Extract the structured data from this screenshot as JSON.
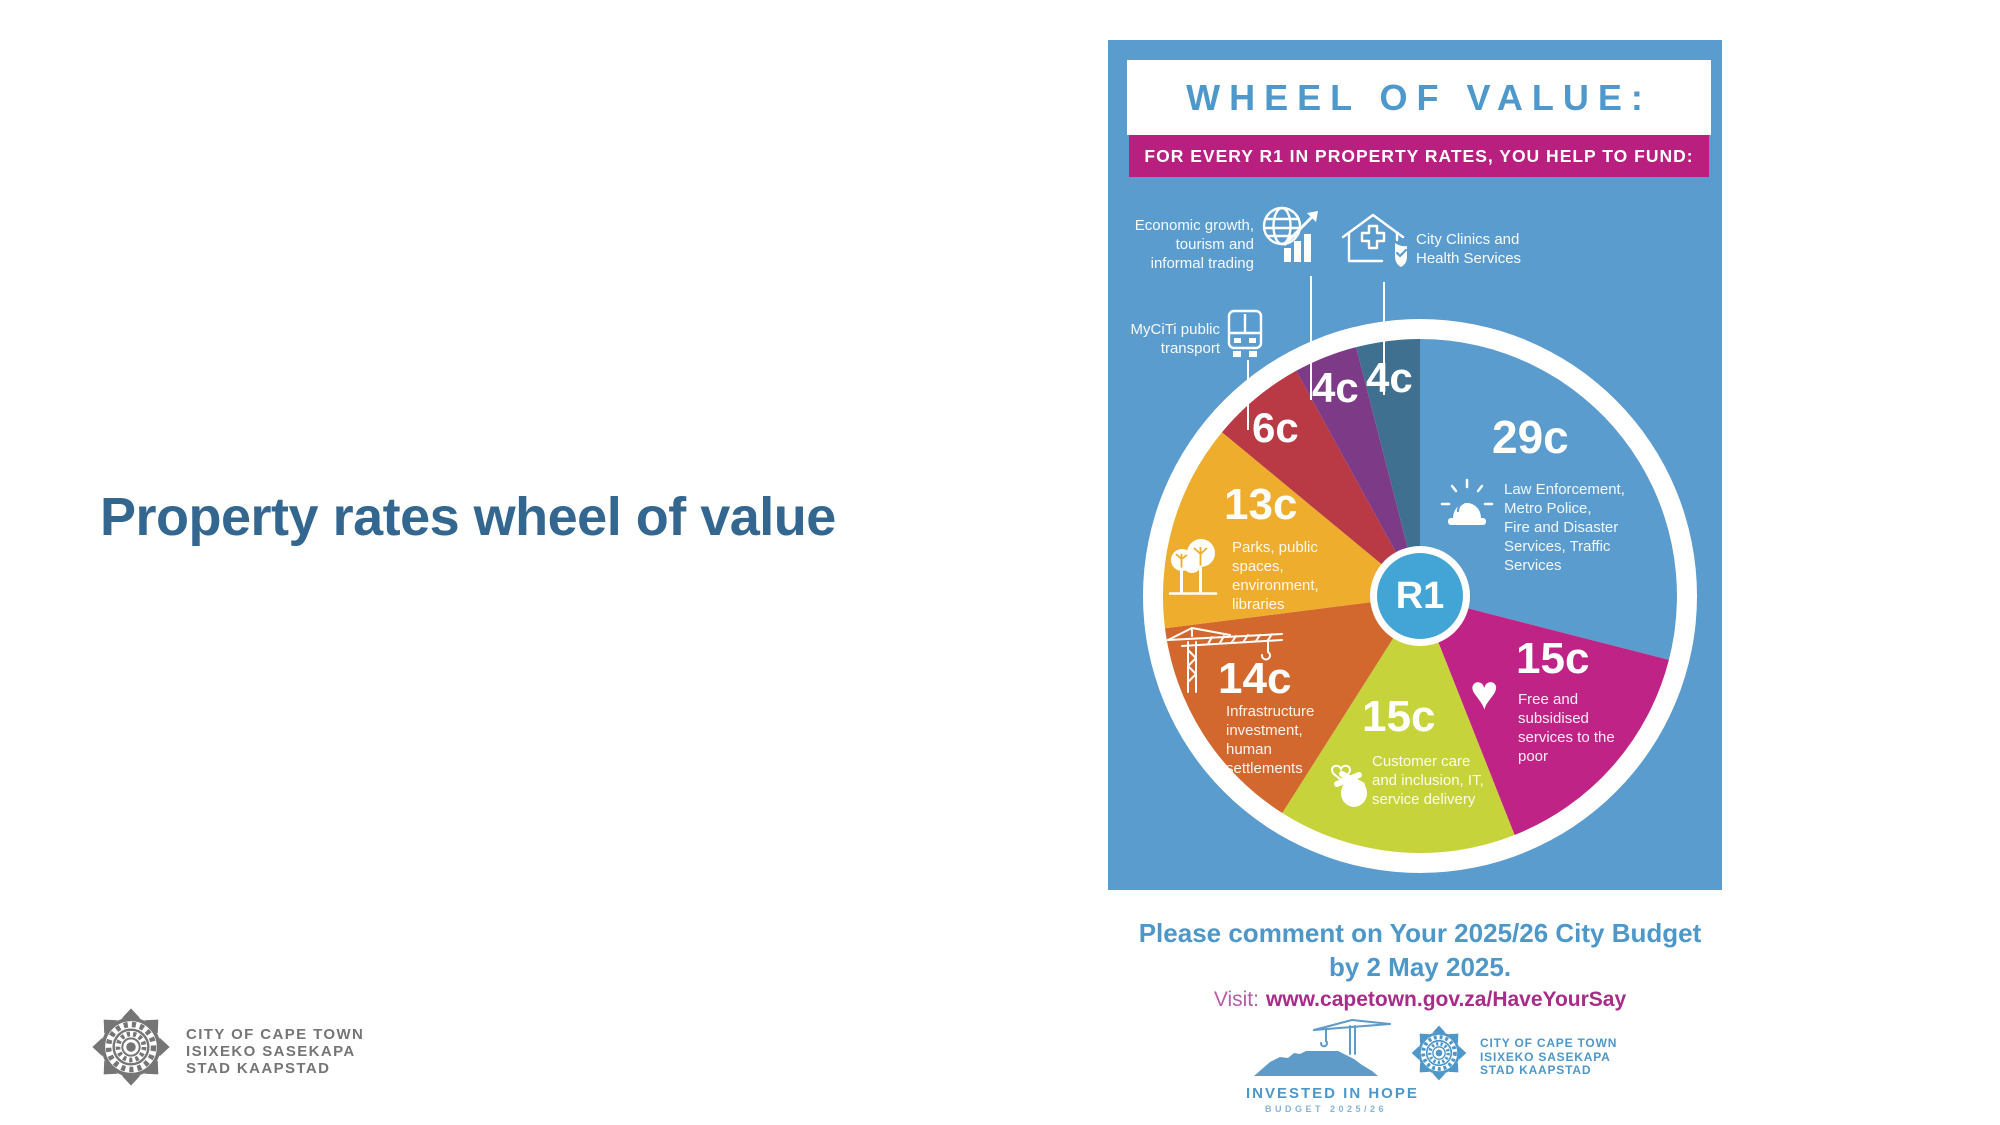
{
  "slide": {
    "title": "Property rates wheel of value",
    "logo_lines": "CITY OF CAPE TOWN\nISIXEKO SASEKAPA\nSTAD KAAPSTAD"
  },
  "poster": {
    "header_title": "WHEEL OF VALUE:",
    "banner_text": "FOR EVERY R1 IN PROPERTY RATES, YOU HELP TO FUND:",
    "center_label": "R1",
    "icons": {
      "heart_glyph": "♥"
    },
    "colors": {
      "poster_background": "#5B9CCE",
      "banner_pink": "#B81F7E",
      "header_text_blue": "#4E98CB",
      "center_circle_blue": "#43A5D5",
      "ring_white": "#FFFFFF"
    }
  },
  "chart_data": {
    "type": "pie",
    "title": "WHEEL OF VALUE:",
    "subtitle": "FOR EVERY R1 IN PROPERTY RATES, YOU HELP TO FUND:",
    "unit": "cents of every R1 in property rates",
    "total": 100,
    "start_angle_deg": 0,
    "direction": "clockwise",
    "center_label": "R1",
    "segments": [
      {
        "display": "29c",
        "value": 29,
        "color": "#5B9CCE",
        "icon": "siren-icon",
        "label": "Law Enforcement,\nMetro Police,\nFire and Disaster\nServices, Traffic\nServices"
      },
      {
        "display": "15c",
        "value": 15,
        "color": "#C02386",
        "icon": "heart-icon",
        "label": "Free and\nsubsidised\nservices to the\npoor"
      },
      {
        "display": "15c",
        "value": 15,
        "color": "#C6D33B",
        "icon": "finger-heart-icon",
        "label": "Customer care\nand inclusion, IT,\nservice delivery"
      },
      {
        "display": "14c",
        "value": 14,
        "color": "#D2682E",
        "icon": "crane-icon",
        "label": "Infrastructure\ninvestment,\nhuman\nsettlements"
      },
      {
        "display": "13c",
        "value": 13,
        "color": "#EEAD2D",
        "icon": "trees-icon",
        "label": "Parks, public\nspaces,\nenvironment,\nlibraries"
      },
      {
        "display": "6c",
        "value": 6,
        "color": "#B93945",
        "icon": "bus-icon",
        "label": "MyCiTi public\ntransport"
      },
      {
        "display": "4c",
        "value": 4,
        "color": "#7C3A87",
        "icon": "globe-growth-icon",
        "label": "Economic growth,\ntourism and\ninformal trading"
      },
      {
        "display": "4c",
        "value": 4,
        "color": "#40708F",
        "icon": "clinic-icon",
        "label": "City Clinics and\nHealth Services"
      }
    ]
  },
  "footer": {
    "comment_line1": "Please comment on Your 2025/26 City Budget",
    "comment_line2": "by 2 May 2025.",
    "visit_prefix": "Visit:",
    "visit_url": "www.capetown.gov.za/HaveYourSay",
    "invested_logo_title": "INVESTED IN HOPE",
    "invested_logo_subtitle": "BUDGET 2025/26",
    "coct_logo_lines": "CITY OF CAPE TOWN\nISIXEKO SASEKAPA\nSTAD KAAPSTAD"
  }
}
